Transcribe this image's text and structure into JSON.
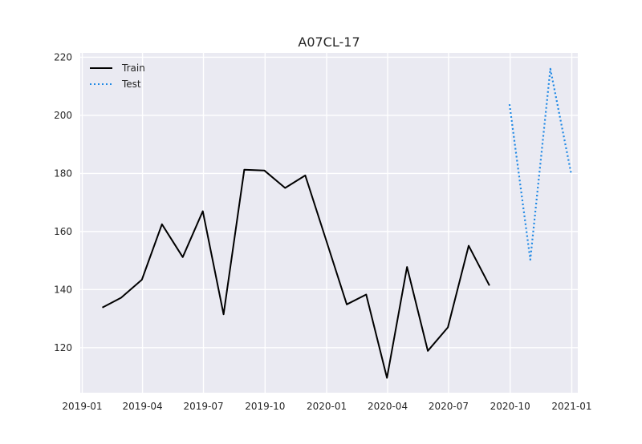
{
  "chart_data": {
    "type": "line",
    "title": "A07CL-17",
    "xlabel": "",
    "ylabel": "",
    "x_ticks": [
      "2019-01",
      "2019-04",
      "2019-07",
      "2019-10",
      "2020-01",
      "2020-04",
      "2020-07",
      "2020-10",
      "2021-01"
    ],
    "y_ticks": [
      120,
      140,
      160,
      180,
      200,
      220
    ],
    "xlim": [
      "2018-12-29",
      "2021-01-10"
    ],
    "ylim": [
      104.5,
      221.5
    ],
    "grid": true,
    "legend_position": "top-left",
    "series": [
      {
        "name": "Train",
        "style": "solid",
        "color": "#000000",
        "points": [
          {
            "x": "2019-01-31",
            "y": 133.8
          },
          {
            "x": "2019-02-28",
            "y": 137.2
          },
          {
            "x": "2019-03-31",
            "y": 143.4
          },
          {
            "x": "2019-04-30",
            "y": 162.5
          },
          {
            "x": "2019-05-31",
            "y": 151.2
          },
          {
            "x": "2019-06-30",
            "y": 167.0
          },
          {
            "x": "2019-07-31",
            "y": 131.5
          },
          {
            "x": "2019-08-31",
            "y": 181.3
          },
          {
            "x": "2019-09-30",
            "y": 181.0
          },
          {
            "x": "2019-10-31",
            "y": 175.0
          },
          {
            "x": "2019-11-30",
            "y": 179.3
          },
          {
            "x": "2019-12-31",
            "y": 157.2
          },
          {
            "x": "2020-01-31",
            "y": 134.9
          },
          {
            "x": "2020-02-29",
            "y": 138.3
          },
          {
            "x": "2020-03-31",
            "y": 109.6
          },
          {
            "x": "2020-04-30",
            "y": 147.8
          },
          {
            "x": "2020-05-31",
            "y": 118.9
          },
          {
            "x": "2020-06-30",
            "y": 127.0
          },
          {
            "x": "2020-07-31",
            "y": 155.1
          },
          {
            "x": "2020-08-31",
            "y": 141.4
          }
        ]
      },
      {
        "name": "Test",
        "style": "dotted",
        "color": "#1e88e5",
        "points": [
          {
            "x": "2020-09-30",
            "y": 203.8
          },
          {
            "x": "2020-10-31",
            "y": 150.3
          },
          {
            "x": "2020-11-30",
            "y": 216.0
          },
          {
            "x": "2020-12-31",
            "y": 180.0
          }
        ]
      }
    ]
  }
}
